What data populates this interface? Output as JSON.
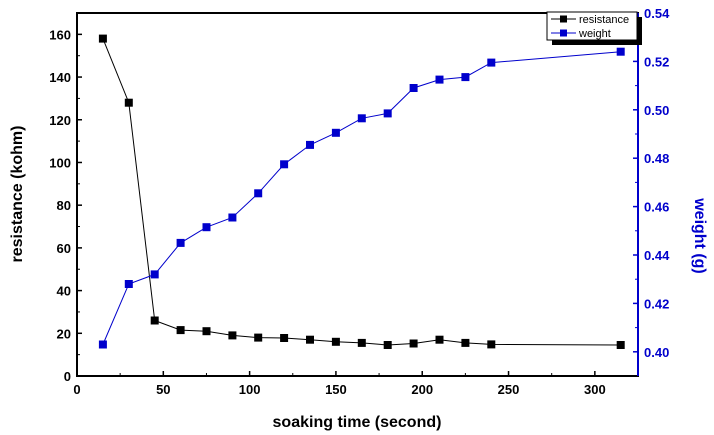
{
  "chart_data": {
    "type": "line",
    "title": "",
    "xlabel": "soaking time (second)",
    "ylabel": "resistance (kohm)",
    "y2label": "weight (g)",
    "xlim": [
      0,
      325
    ],
    "ylim": [
      0,
      170
    ],
    "y2lim": [
      0.39,
      0.54
    ],
    "x_ticks": [
      0,
      50,
      100,
      150,
      200,
      250,
      300
    ],
    "y_ticks": [
      0,
      20,
      40,
      60,
      80,
      100,
      120,
      140,
      160
    ],
    "y2_ticks": [
      0.4,
      0.42,
      0.44,
      0.46,
      0.48,
      0.5,
      0.52,
      0.54
    ],
    "x_tick_labels": [
      "0",
      "50",
      "100",
      "150",
      "200",
      "250",
      "300"
    ],
    "y_tick_labels": [
      "0",
      "20",
      "40",
      "60",
      "80",
      "100",
      "120",
      "140",
      "160"
    ],
    "y2_tick_labels": [
      "0.40",
      "0.42",
      "0.44",
      "0.46",
      "0.48",
      "0.50",
      "0.52",
      "0.54"
    ],
    "grid": false,
    "legend_position": "top-right",
    "series": [
      {
        "name": "resistance",
        "axis": "left",
        "color": "#000000",
        "x": [
          15,
          30,
          45,
          60,
          75,
          90,
          105,
          120,
          135,
          150,
          165,
          180,
          195,
          210,
          225,
          240,
          315
        ],
        "values": [
          158,
          128,
          26,
          21.5,
          21,
          19,
          18,
          17.8,
          17,
          16,
          15.5,
          14.5,
          15.2,
          17,
          15.5,
          14.8,
          14.5
        ]
      },
      {
        "name": "weight",
        "axis": "right",
        "color": "#0000cc",
        "x": [
          15,
          30,
          45,
          60,
          75,
          90,
          105,
          120,
          135,
          150,
          165,
          180,
          195,
          210,
          225,
          240,
          315
        ],
        "values": [
          0.403,
          0.428,
          0.432,
          0.445,
          0.4515,
          0.4555,
          0.4655,
          0.4775,
          0.4855,
          0.4905,
          0.4965,
          0.4985,
          0.509,
          0.5125,
          0.5135,
          0.5195,
          0.524
        ]
      }
    ]
  }
}
